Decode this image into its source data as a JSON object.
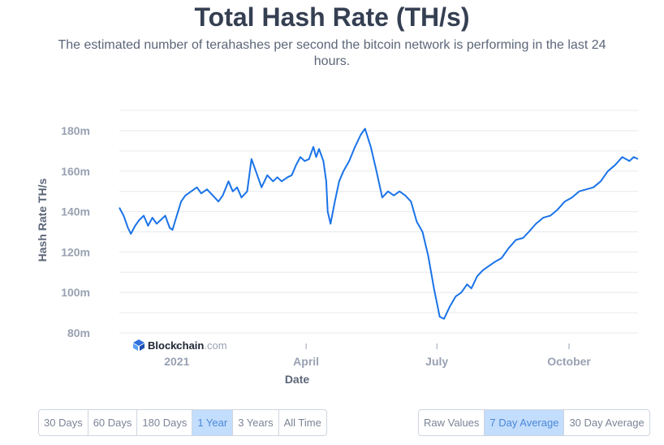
{
  "header": {
    "title": "Total Hash Rate (TH/s)",
    "subtitle": "The estimated number of terahashes per second the bitcoin network is performing in the last 24 hours."
  },
  "watermark": {
    "brand": "Blockchain",
    "domain": ".com",
    "icon": "blockchain-logo-icon"
  },
  "range_buttons": [
    "30 Days",
    "60 Days",
    "180 Days",
    "1 Year",
    "3 Years",
    "All Time"
  ],
  "range_active": "1 Year",
  "value_buttons": [
    "Raw Values",
    "7 Day Average",
    "30 Day Average"
  ],
  "value_active": "7 Day Average",
  "colors": {
    "line": "#1a73e8",
    "grid": "#e6e9ee",
    "active_button_bg": "#c3ddfc",
    "active_button_text": "#4a88d9"
  },
  "chart_data": {
    "type": "line",
    "title": "Total Hash Rate (TH/s)",
    "xlabel": "Date",
    "ylabel": "Hash Rate TH/s",
    "x_ticks": [
      "2021",
      "April",
      "July",
      "October"
    ],
    "y_ticks": [
      "80m",
      "100m",
      "120m",
      "140m",
      "160m",
      "180m"
    ],
    "ylim": [
      80,
      180
    ],
    "xlim": [
      "2020-11-22",
      "2021-11-18"
    ],
    "grid": true,
    "legend": "none",
    "series": [
      {
        "values": [
          [
            "2020-11-22",
            142
          ],
          [
            "2020-11-25",
            138
          ],
          [
            "2020-11-28",
            132
          ],
          [
            "2020-11-30",
            129
          ],
          [
            "2020-12-03",
            133
          ],
          [
            "2020-12-06",
            136
          ],
          [
            "2020-12-09",
            138
          ],
          [
            "2020-12-12",
            133
          ],
          [
            "2020-12-15",
            137
          ],
          [
            "2020-12-18",
            134
          ],
          [
            "2020-12-21",
            136
          ],
          [
            "2020-12-24",
            138
          ],
          [
            "2020-12-27",
            132
          ],
          [
            "2020-12-29",
            131
          ],
          [
            "2021-01-01",
            138
          ],
          [
            "2021-01-04",
            145
          ],
          [
            "2021-01-07",
            148
          ],
          [
            "2021-01-11",
            150
          ],
          [
            "2021-01-15",
            152
          ],
          [
            "2021-01-18",
            149
          ],
          [
            "2021-01-22",
            151
          ],
          [
            "2021-01-26",
            148
          ],
          [
            "2021-01-30",
            145
          ],
          [
            "2021-02-02",
            148
          ],
          [
            "2021-02-06",
            155
          ],
          [
            "2021-02-09",
            150
          ],
          [
            "2021-02-12",
            152
          ],
          [
            "2021-02-15",
            147
          ],
          [
            "2021-02-19",
            150
          ],
          [
            "2021-02-22",
            166
          ],
          [
            "2021-02-25",
            160
          ],
          [
            "2021-03-01",
            152
          ],
          [
            "2021-03-05",
            158
          ],
          [
            "2021-03-09",
            155
          ],
          [
            "2021-03-12",
            157
          ],
          [
            "2021-03-15",
            155
          ],
          [
            "2021-03-19",
            157
          ],
          [
            "2021-03-22",
            158
          ],
          [
            "2021-03-25",
            163
          ],
          [
            "2021-03-28",
            167
          ],
          [
            "2021-03-31",
            165
          ],
          [
            "2021-04-03",
            166
          ],
          [
            "2021-04-06",
            172
          ],
          [
            "2021-04-08",
            167
          ],
          [
            "2021-04-10",
            171
          ],
          [
            "2021-04-13",
            165
          ],
          [
            "2021-04-15",
            155
          ],
          [
            "2021-04-16",
            140
          ],
          [
            "2021-04-18",
            134
          ],
          [
            "2021-04-21",
            145
          ],
          [
            "2021-04-24",
            155
          ],
          [
            "2021-04-27",
            160
          ],
          [
            "2021-05-01",
            165
          ],
          [
            "2021-05-05",
            172
          ],
          [
            "2021-05-09",
            178
          ],
          [
            "2021-05-12",
            181
          ],
          [
            "2021-05-16",
            172
          ],
          [
            "2021-05-20",
            160
          ],
          [
            "2021-05-24",
            147
          ],
          [
            "2021-05-28",
            150
          ],
          [
            "2021-06-01",
            148
          ],
          [
            "2021-06-05",
            150
          ],
          [
            "2021-06-09",
            148
          ],
          [
            "2021-06-13",
            145
          ],
          [
            "2021-06-17",
            135
          ],
          [
            "2021-06-21",
            130
          ],
          [
            "2021-06-25",
            118
          ],
          [
            "2021-06-29",
            102
          ],
          [
            "2021-07-03",
            88
          ],
          [
            "2021-07-06",
            87
          ],
          [
            "2021-07-10",
            93
          ],
          [
            "2021-07-14",
            98
          ],
          [
            "2021-07-18",
            100
          ],
          [
            "2021-07-22",
            104
          ],
          [
            "2021-07-25",
            102
          ],
          [
            "2021-07-29",
            108
          ],
          [
            "2021-08-02",
            111
          ],
          [
            "2021-08-06",
            113
          ],
          [
            "2021-08-10",
            115
          ],
          [
            "2021-08-15",
            117
          ],
          [
            "2021-08-20",
            122
          ],
          [
            "2021-08-25",
            126
          ],
          [
            "2021-08-30",
            127
          ],
          [
            "2021-09-03",
            130
          ],
          [
            "2021-09-08",
            134
          ],
          [
            "2021-09-13",
            137
          ],
          [
            "2021-09-18",
            138
          ],
          [
            "2021-09-23",
            141
          ],
          [
            "2021-09-28",
            145
          ],
          [
            "2021-10-03",
            147
          ],
          [
            "2021-10-08",
            150
          ],
          [
            "2021-10-13",
            151
          ],
          [
            "2021-10-18",
            152
          ],
          [
            "2021-10-23",
            155
          ],
          [
            "2021-10-28",
            160
          ],
          [
            "2021-11-02",
            163
          ],
          [
            "2021-11-07",
            167
          ],
          [
            "2021-11-12",
            165
          ],
          [
            "2021-11-15",
            167
          ],
          [
            "2021-11-18",
            166
          ]
        ]
      }
    ]
  }
}
